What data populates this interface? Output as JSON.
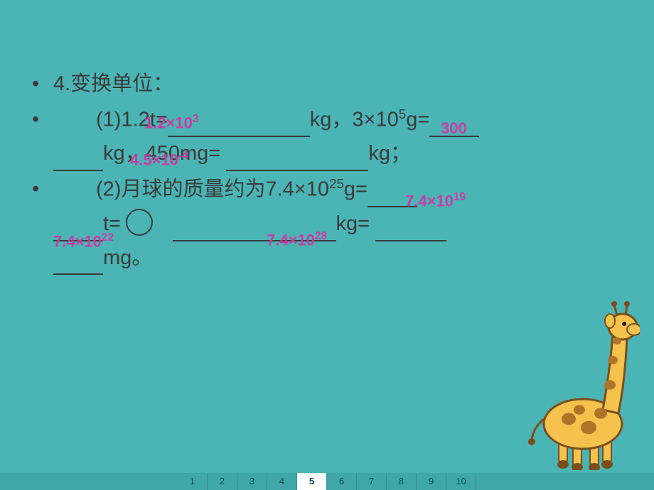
{
  "colors": {
    "background": "#4bb5b5",
    "text": "#3a3a3a",
    "answer": "#c93ba5",
    "pagebar_bg": "#3fa7a7",
    "pagebar_active": "#ffffff"
  },
  "typography": {
    "body_fontsize_pt": 22,
    "answer_fontsize_pt": 17,
    "line_height": 1.65
  },
  "bullets": {
    "header": "4.变换单位：",
    "line1a": "(1)1.2t=",
    "line1b": "kg，3×10",
    "line1b_sup": "5",
    "line1c": "g=",
    "line2a": "kg，450mg=",
    "line2b": "kg；",
    "line3a": "(2)月球的质量约为7.4×10",
    "line3a_sup": "25",
    "line3b": "g=",
    "line4a": "t=",
    "line4b": "kg=",
    "line5a": "mg。"
  },
  "answers": {
    "a1": {
      "html": "1.2×10<sup>3</sup>"
    },
    "a2": {
      "html": "300"
    },
    "a3": {
      "html": "4.5×10<sup>-4</sup>"
    },
    "a4": {
      "html": "7.4×10<sup>19</sup>"
    },
    "a5": {
      "html": "7.4×10<sup>22</sup>"
    },
    "a6": {
      "html": "7.4×10<sup>28</sup>"
    }
  },
  "pagebar": {
    "total": 10,
    "active": 5
  },
  "giraffe": {
    "body": "#f5c24d",
    "spots": "#b07428",
    "outline": "#7a4e1a"
  }
}
